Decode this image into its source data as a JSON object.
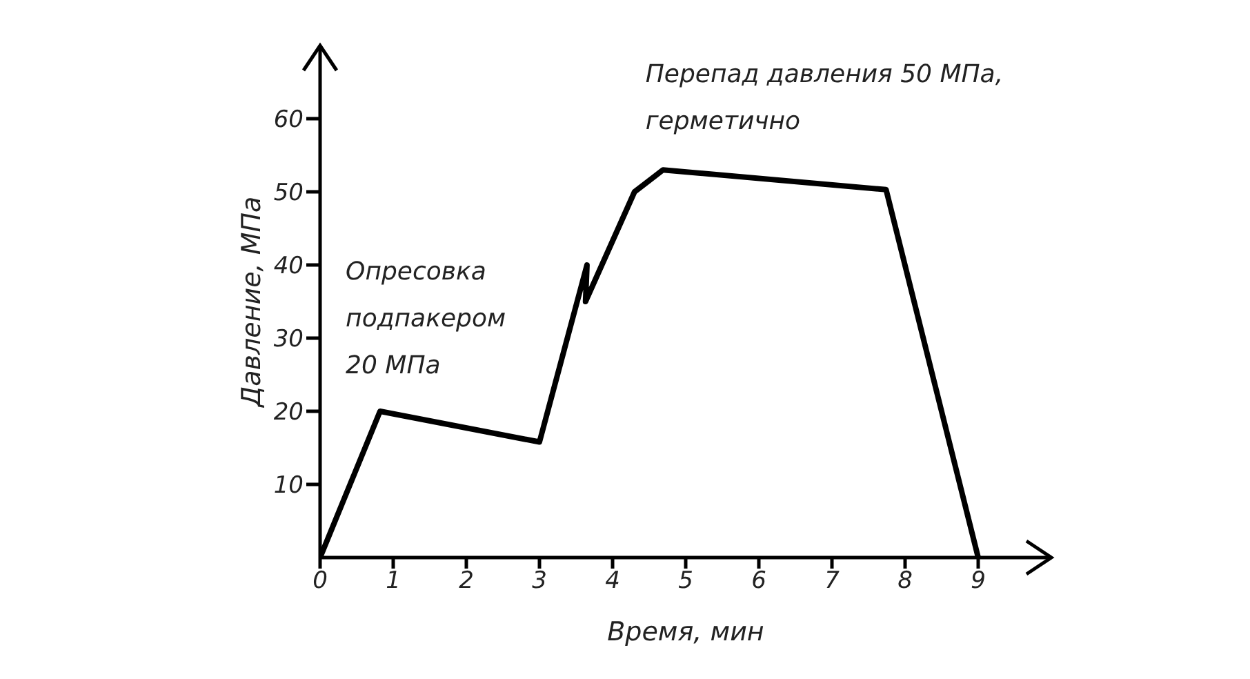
{
  "chart_data": {
    "type": "line",
    "xlabel": "Время, мин",
    "ylabel": "Давление, МПа",
    "x": [
      0,
      0.82,
      3.0,
      3.65,
      3.63,
      4.3,
      4.69,
      7.74,
      9.0
    ],
    "series": [
      {
        "color": "#000000",
        "values": [
          0,
          20,
          15.8,
          40,
          35,
          50,
          53,
          50.3,
          0
        ]
      }
    ],
    "xlim": [
      0,
      10
    ],
    "ylim": [
      0,
      70
    ],
    "xticks": [
      0,
      1,
      2,
      3,
      4,
      5,
      6,
      7,
      8,
      9
    ],
    "yticks": [
      10,
      20,
      30,
      40,
      50,
      60
    ],
    "grid": false,
    "legend": false,
    "marker": "none",
    "line_style": "solid",
    "annotations": [
      "Опресовка\nподпакером\n20 МПа",
      "Перепад давления 50 МПа,\nгерметично"
    ]
  }
}
